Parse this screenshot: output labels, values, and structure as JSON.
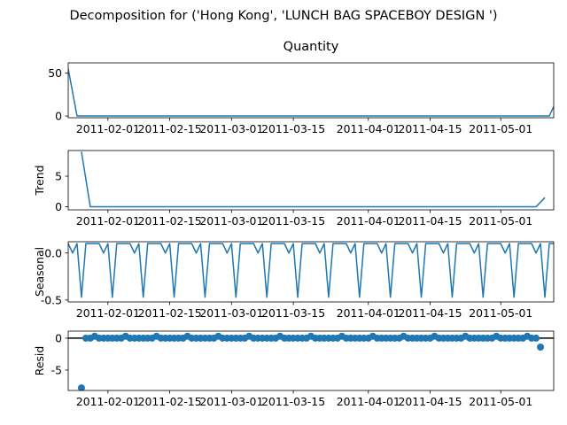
{
  "figure_title": "Decomposition for ('Hong Kong', 'LUNCH BAG SPACEBOY DESIGN ')",
  "colors": {
    "series": "#1f77b4",
    "axes": "#000000",
    "zero_line": "#000000",
    "background": "#ffffff"
  },
  "x_ticks": [
    "2011-02-01",
    "2011-02-15",
    "2011-03-01",
    "2011-03-15",
    "2011-04-01",
    "2011-04-15",
    "2011-05-01"
  ],
  "chart_data": [
    {
      "type": "line",
      "title": "Quantity",
      "ylabel": "",
      "x_range": [
        "2011-01-23",
        "2011-05-13"
      ],
      "y_range": [
        -2,
        62
      ],
      "y_ticks": [
        0,
        50
      ],
      "points": [
        [
          "2011-01-23",
          55
        ],
        [
          "2011-01-25",
          0
        ],
        [
          "2011-05-12",
          0
        ],
        [
          "2011-05-13",
          11
        ]
      ]
    },
    {
      "type": "line",
      "title": "",
      "ylabel": "Trend",
      "x_range": [
        "2011-01-23",
        "2011-05-13"
      ],
      "y_range": [
        -0.5,
        9.2
      ],
      "y_ticks": [
        0,
        5
      ],
      "points": [
        [
          "2011-01-26",
          9
        ],
        [
          "2011-01-28",
          0
        ],
        [
          "2011-05-09",
          0
        ],
        [
          "2011-05-11",
          1.5
        ]
      ]
    },
    {
      "type": "line",
      "title": "",
      "ylabel": "Seasonal",
      "x_range": [
        "2011-01-23",
        "2011-05-13"
      ],
      "y_range": [
        -0.52,
        0.12
      ],
      "y_ticks": [
        0.0,
        -0.5
      ],
      "period_days": 7,
      "first_day": "2011-01-23",
      "pattern": [
        0.1,
        0.0,
        0.1,
        -0.47,
        0.1,
        0.1,
        0.1
      ],
      "num_days": 112
    },
    {
      "type": "scatter",
      "title": "",
      "ylabel": "Resid",
      "x_range": [
        "2011-01-23",
        "2011-05-13"
      ],
      "y_range": [
        -8.2,
        1.1
      ],
      "y_ticks": [
        0,
        -5
      ],
      "zero_line": true,
      "start": "2011-01-26",
      "end": "2011-05-10",
      "default_value": 0,
      "small_bump": 0.3,
      "bump_every_days": 7,
      "bump_offset_days": 3,
      "special": [
        [
          "2011-01-26",
          -7.8
        ],
        [
          "2011-05-10",
          -1.4
        ]
      ]
    }
  ]
}
